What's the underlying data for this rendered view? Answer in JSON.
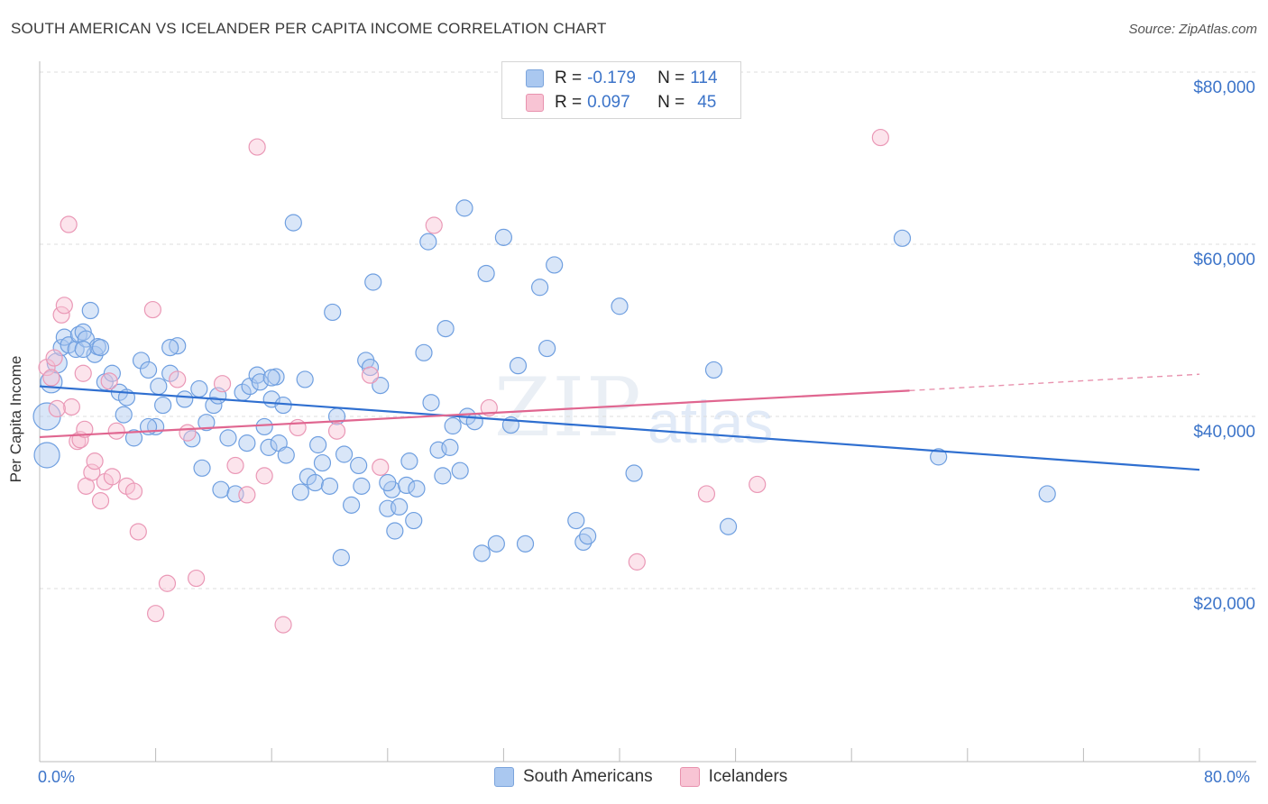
{
  "title": "SOUTH AMERICAN VS ICELANDER PER CAPITA INCOME CORRELATION CHART",
  "source": "Source: ZipAtlas.com",
  "watermark": {
    "part1": "ZIP",
    "part2": "atlas"
  },
  "legend": {
    "rows": [
      {
        "r_label": "R =",
        "r_value": "-0.179",
        "n_label": "N =",
        "n_value": "114",
        "color": "#aac8f0",
        "border": "#7ba4dc"
      },
      {
        "r_label": "R =",
        "r_value": "0.097",
        "n_label": "N =",
        "n_value": "45",
        "color": "#f8c4d4",
        "border": "#e892ae"
      }
    ]
  },
  "bottom_legend": [
    {
      "label": "South Americans",
      "color": "#aac8f0",
      "border": "#7ba4dc"
    },
    {
      "label": "Icelanders",
      "color": "#f8c4d4",
      "border": "#e892ae"
    }
  ],
  "x_axis": {
    "min_label": "0.0%",
    "max_label": "80.0%"
  },
  "y_axis": {
    "label": "Per Capita Income",
    "ticks": [
      "$20,000",
      "$40,000",
      "$60,000",
      "$80,000"
    ]
  },
  "chart_data": {
    "type": "scatter",
    "title": "SOUTH AMERICAN VS ICELANDER PER CAPITA INCOME CORRELATION CHART",
    "xlabel": "",
    "ylabel": "Per Capita Income",
    "xlim": [
      0,
      80
    ],
    "ylim": [
      0,
      82000
    ],
    "yticks": [
      20000,
      40000,
      60000,
      80000
    ],
    "grid": true,
    "series": [
      {
        "name": "South Americans",
        "color": "#6f9fe0",
        "trend": {
          "x": [
            0,
            80
          ],
          "y": [
            43500,
            33800
          ]
        },
        "points": [
          [
            0.5,
            35500
          ],
          [
            0.5,
            40000
          ],
          [
            0.8,
            44000
          ],
          [
            1.2,
            46200
          ],
          [
            1.5,
            48000
          ],
          [
            1.7,
            49200
          ],
          [
            2.0,
            48300
          ],
          [
            2.5,
            47800
          ],
          [
            2.7,
            49500
          ],
          [
            3.0,
            49800
          ],
          [
            3.2,
            49000
          ],
          [
            3.5,
            52300
          ],
          [
            3.8,
            47200
          ],
          [
            4.0,
            48100
          ],
          [
            4.2,
            48000
          ],
          [
            4.5,
            44000
          ],
          [
            5.0,
            45000
          ],
          [
            5.5,
            42800
          ],
          [
            5.8,
            40200
          ],
          [
            6.0,
            42200
          ],
          [
            6.5,
            37500
          ],
          [
            7.0,
            46500
          ],
          [
            7.5,
            45400
          ],
          [
            8.0,
            38800
          ],
          [
            8.2,
            43500
          ],
          [
            8.5,
            41300
          ],
          [
            9.0,
            45000
          ],
          [
            9.5,
            48200
          ],
          [
            10.0,
            42000
          ],
          [
            10.5,
            37400
          ],
          [
            11.0,
            43200
          ],
          [
            11.2,
            34000
          ],
          [
            11.5,
            39300
          ],
          [
            12.0,
            41300
          ],
          [
            12.3,
            42400
          ],
          [
            12.5,
            31500
          ],
          [
            13.0,
            37500
          ],
          [
            13.5,
            31000
          ],
          [
            14.0,
            42800
          ],
          [
            14.3,
            36900
          ],
          [
            14.5,
            43500
          ],
          [
            15.0,
            44800
          ],
          [
            15.2,
            44000
          ],
          [
            15.5,
            38800
          ],
          [
            15.8,
            36400
          ],
          [
            16.0,
            42000
          ],
          [
            16.3,
            44600
          ],
          [
            16.5,
            36900
          ],
          [
            16.8,
            41300
          ],
          [
            17.0,
            35500
          ],
          [
            17.5,
            62500
          ],
          [
            18.0,
            31200
          ],
          [
            18.3,
            44300
          ],
          [
            18.5,
            33000
          ],
          [
            19.0,
            32300
          ],
          [
            19.2,
            36700
          ],
          [
            19.5,
            34600
          ],
          [
            20.0,
            31900
          ],
          [
            20.2,
            52100
          ],
          [
            20.5,
            40000
          ],
          [
            20.8,
            23600
          ],
          [
            21.0,
            35600
          ],
          [
            21.5,
            29700
          ],
          [
            22.0,
            34300
          ],
          [
            22.2,
            31900
          ],
          [
            22.5,
            46500
          ],
          [
            22.8,
            45700
          ],
          [
            23.0,
            55600
          ],
          [
            23.5,
            43600
          ],
          [
            24.0,
            29300
          ],
          [
            24.3,
            31500
          ],
          [
            24.5,
            26700
          ],
          [
            24.8,
            29500
          ],
          [
            25.3,
            32000
          ],
          [
            25.5,
            34800
          ],
          [
            25.8,
            27900
          ],
          [
            26.0,
            31600
          ],
          [
            26.5,
            47400
          ],
          [
            26.8,
            60300
          ],
          [
            27.0,
            41600
          ],
          [
            27.5,
            36100
          ],
          [
            27.8,
            33100
          ],
          [
            28.0,
            50200
          ],
          [
            28.3,
            36400
          ],
          [
            28.5,
            38900
          ],
          [
            29.0,
            33700
          ],
          [
            29.3,
            64200
          ],
          [
            29.5,
            40000
          ],
          [
            30.0,
            39400
          ],
          [
            30.5,
            24100
          ],
          [
            30.8,
            56600
          ],
          [
            31.5,
            25200
          ],
          [
            32.0,
            60800
          ],
          [
            32.5,
            39000
          ],
          [
            33.0,
            45900
          ],
          [
            33.5,
            25200
          ],
          [
            34.5,
            55000
          ],
          [
            35.0,
            47900
          ],
          [
            35.5,
            57600
          ],
          [
            37.0,
            27900
          ],
          [
            37.5,
            25400
          ],
          [
            37.8,
            26100
          ],
          [
            40.0,
            52800
          ],
          [
            41.0,
            33400
          ],
          [
            46.5,
            45400
          ],
          [
            47.5,
            27200
          ],
          [
            59.5,
            60700
          ],
          [
            62.0,
            35300
          ],
          [
            69.5,
            31000
          ],
          [
            7.5,
            38800
          ],
          [
            3.0,
            47800
          ],
          [
            9.0,
            48000
          ],
          [
            16.0,
            44500
          ],
          [
            24.0,
            32300
          ]
        ]
      },
      {
        "name": "Icelanders",
        "color": "#f09ab8",
        "trend": {
          "x": [
            0,
            60
          ],
          "y": [
            37600,
            43000
          ]
        },
        "trend_dashed": {
          "x": [
            60,
            80
          ],
          "y": [
            43000,
            44900
          ]
        },
        "points": [
          [
            0.5,
            45700
          ],
          [
            0.8,
            44500
          ],
          [
            1.0,
            46800
          ],
          [
            1.5,
            51800
          ],
          [
            1.7,
            52900
          ],
          [
            2.0,
            62300
          ],
          [
            2.2,
            41100
          ],
          [
            2.6,
            37100
          ],
          [
            2.8,
            37300
          ],
          [
            3.1,
            38500
          ],
          [
            3.2,
            31900
          ],
          [
            3.6,
            33500
          ],
          [
            3.8,
            34800
          ],
          [
            4.2,
            30200
          ],
          [
            4.5,
            32400
          ],
          [
            4.8,
            44100
          ],
          [
            5.0,
            33000
          ],
          [
            5.3,
            38300
          ],
          [
            6.0,
            31900
          ],
          [
            6.5,
            31300
          ],
          [
            6.8,
            26600
          ],
          [
            7.8,
            52400
          ],
          [
            8.0,
            17100
          ],
          [
            8.8,
            20600
          ],
          [
            9.5,
            44300
          ],
          [
            10.2,
            38100
          ],
          [
            10.8,
            21200
          ],
          [
            12.6,
            43800
          ],
          [
            13.5,
            34300
          ],
          [
            14.3,
            30900
          ],
          [
            15.0,
            71300
          ],
          [
            15.5,
            33100
          ],
          [
            16.8,
            15800
          ],
          [
            17.8,
            38700
          ],
          [
            20.5,
            38300
          ],
          [
            22.8,
            44800
          ],
          [
            23.5,
            34100
          ],
          [
            27.2,
            62200
          ],
          [
            31.0,
            41000
          ],
          [
            41.2,
            23100
          ],
          [
            46.0,
            31000
          ],
          [
            49.5,
            32100
          ],
          [
            58.0,
            72400
          ],
          [
            1.2,
            40900
          ],
          [
            3.0,
            45000
          ]
        ]
      }
    ]
  }
}
